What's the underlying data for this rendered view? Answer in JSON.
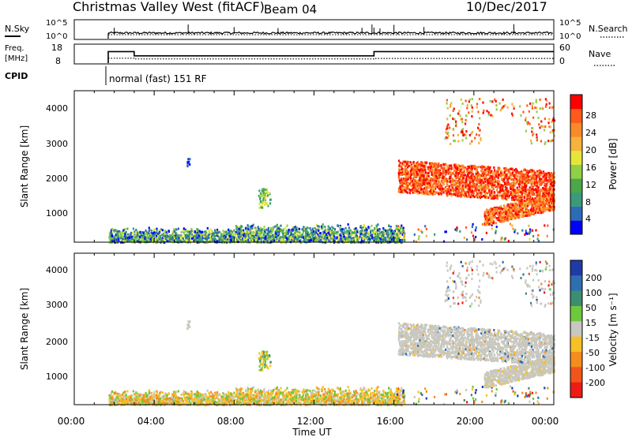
{
  "header": {
    "title": "Christmas Valley West (fitACF)",
    "beam": "Beam 04",
    "date": "10/Dec/2017"
  },
  "chart_data": [
    {
      "type": "line",
      "name_label": "N.Sky",
      "right_label": "N.Search",
      "y_ticks_left": [
        "10^5",
        "10^0"
      ],
      "y_ticks_right": [
        "10^5",
        "10^0"
      ],
      "x_range": [
        0,
        24
      ],
      "series_description": "N.Sky noise (solid) vs N.Search (dotted)",
      "nsky_spikes_hours": [
        2.0,
        5.7,
        8.0,
        10.2,
        14.4,
        14.9,
        15.0,
        15.3,
        16.0,
        17.5,
        22.0
      ]
    },
    {
      "type": "line",
      "label_left": "Freq.",
      "label_left_unit": "[MHz]",
      "label_right": "Nave",
      "y_ticks_left": [
        "18",
        "8"
      ],
      "y_ticks_right": [
        "60",
        "0"
      ],
      "freq_steps": [
        {
          "start": 1.7,
          "end": 3.0,
          "value": 15
        },
        {
          "start": 3.0,
          "end": 15.0,
          "value": 12
        },
        {
          "start": 15.0,
          "end": 24.0,
          "value": 15
        }
      ],
      "nave_steps": [
        {
          "start": 1.7,
          "end": 3.0,
          "value": 14
        },
        {
          "start": 3.0,
          "end": 15.0,
          "value": 11
        },
        {
          "start": 15.0,
          "end": 24.0,
          "value": 13
        }
      ]
    },
    {
      "type": "heatmap",
      "cpid_label": "CPID",
      "cpid_mode": "normal (fast) 151 RF",
      "ylabel": "Slant Range [km]",
      "y_ticks": [
        1000,
        2000,
        3000,
        4000
      ],
      "ylim": [
        200,
        4500
      ],
      "x_ticks": [
        "00:00",
        "04:00",
        "08:00",
        "12:00",
        "16:00",
        "20:00",
        "00:00"
      ],
      "colorbar_label": "Power [dB]",
      "colorbar_ticks": [
        "4",
        "8",
        "12",
        "16",
        "20",
        "24",
        "28"
      ],
      "colorbar_colors": [
        "#0000ff",
        "#2c6cb6",
        "#3a9a7a",
        "#4ca64a",
        "#8fd046",
        "#e6e63a",
        "#f6b23c",
        "#f98a2a",
        "#ff5a1a",
        "#ff0000"
      ]
    },
    {
      "type": "heatmap",
      "ylabel": "Slant Range [km]",
      "y_ticks": [
        1000,
        2000,
        3000,
        4000
      ],
      "ylim": [
        200,
        4500
      ],
      "x_ticks": [
        "00:00",
        "04:00",
        "08:00",
        "12:00",
        "16:00",
        "20:00",
        "00:00"
      ],
      "xlabel": "Time UT",
      "colorbar_label": "Velocity [m s⁻¹]",
      "colorbar_ticks": [
        "200",
        "100",
        "50",
        "15",
        "-15",
        "-50",
        "-100",
        "-200"
      ],
      "colorbar_colors": [
        "#1f3ba6",
        "#2e6fb0",
        "#3b8f70",
        "#6ec83c",
        "#c8c8c0",
        "#f6c026",
        "#f58c1e",
        "#f2541a",
        "#ee1c14"
      ]
    }
  ]
}
